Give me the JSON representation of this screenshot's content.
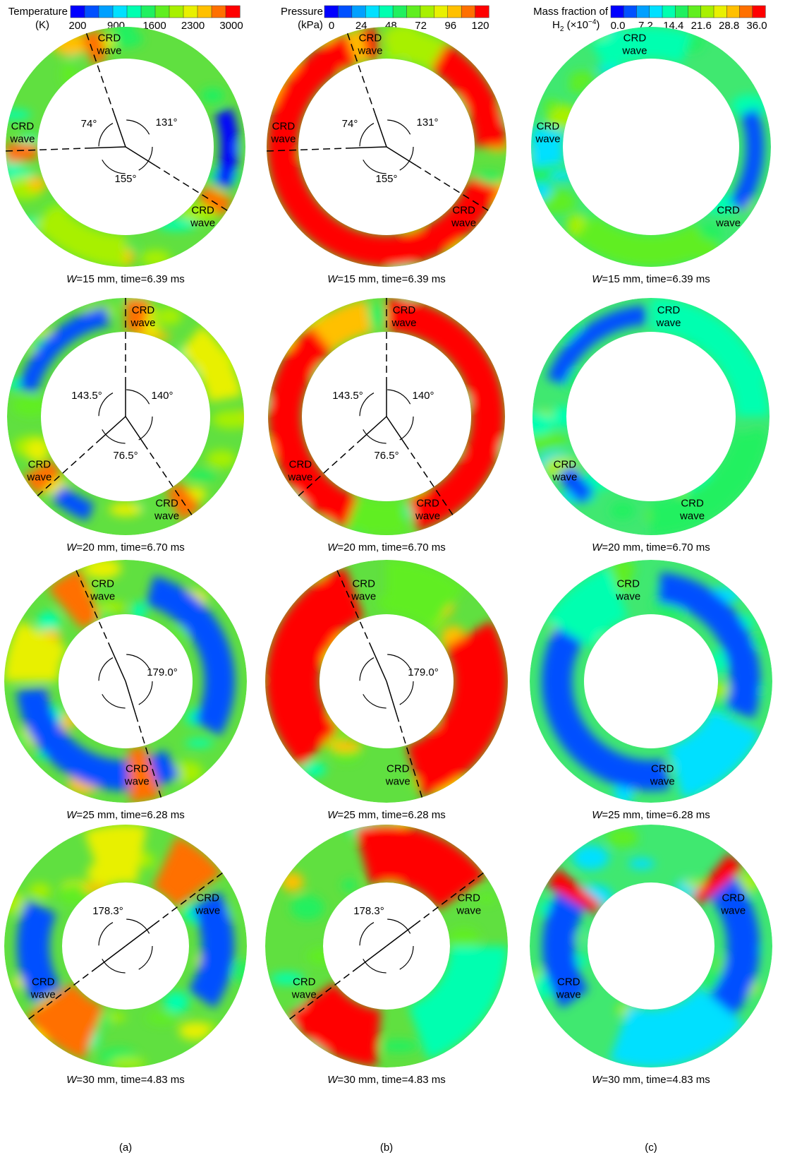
{
  "colorbars": [
    {
      "label_lines": [
        "Temperature",
        "(K)"
      ],
      "ticks": [
        "200",
        "900",
        "1600",
        "2300",
        "3000"
      ]
    },
    {
      "label_lines": [
        "Pressure",
        "(kPa)"
      ],
      "ticks": [
        "0",
        "24",
        "48",
        "72",
        "96",
        "120"
      ]
    },
    {
      "label_lines": [
        "Mass fraction of",
        "H",
        "2",
        " (×10",
        "−4",
        ")"
      ],
      "ticks": [
        "0.0",
        "7.2",
        "14.4",
        "21.6",
        "28.8",
        "36.0"
      ]
    }
  ],
  "columns": [
    {
      "letter": "(a)"
    },
    {
      "letter": "(b)"
    },
    {
      "letter": "(c)"
    }
  ],
  "rows": [
    {
      "caption_var": "W",
      "caption_rest": "=15 mm, time=6.39 ms",
      "angles": [
        "74°",
        "131°",
        "155°"
      ],
      "crd": [
        "CRD",
        "wave"
      ]
    },
    {
      "caption_var": "W",
      "caption_rest": "=20 mm, time=6.70 ms",
      "angles": [
        "143.5°",
        "140°",
        "76.5°"
      ],
      "crd": [
        "CRD",
        "wave"
      ]
    },
    {
      "caption_var": "W",
      "caption_rest": "=25 mm, time=6.28 ms",
      "angles": [
        "179.0°"
      ],
      "crd": [
        "CRD",
        "wave"
      ]
    },
    {
      "caption_var": "W",
      "caption_rest": "=30 mm, time=4.83 ms",
      "angles": [
        "178.3°"
      ],
      "crd": [
        "CRD",
        "wave"
      ]
    }
  ]
}
